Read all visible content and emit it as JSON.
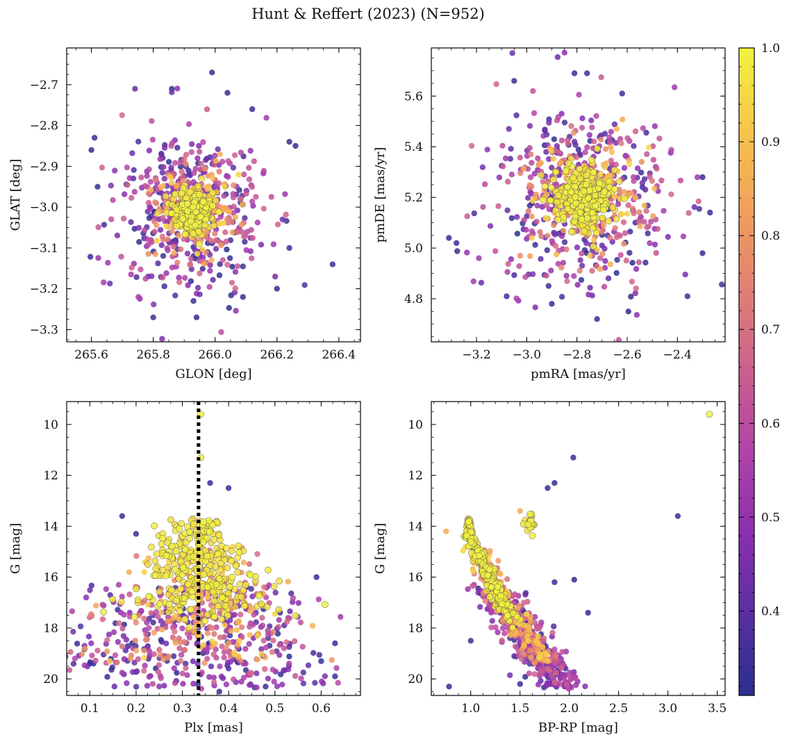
{
  "title": "Hunt & Reffert (2023) (N=952)",
  "colors": {
    "cmap_stops": [
      "#2a2f8f",
      "#5a2fa3",
      "#8b2fb0",
      "#b043a8",
      "#cc5f8e",
      "#e17f74",
      "#f1a05b",
      "#f7c54a",
      "#f2f43f"
    ],
    "marker_edge": "#555555",
    "dashed_line": "#000000"
  },
  "chart_data": [
    {
      "id": "spatial",
      "type": "scatter",
      "xlabel": "GLON [deg]",
      "ylabel": "GLAT [deg]",
      "xlim": [
        265.52,
        266.47
      ],
      "ylim": [
        -3.33,
        -2.61
      ],
      "xticks": [
        265.6,
        265.8,
        266.0,
        266.2,
        266.4
      ],
      "xtick_labels": [
        "265.6",
        "265.8",
        "266.0",
        "266.2",
        "266.4"
      ],
      "yticks": [
        -2.7,
        -2.8,
        -2.9,
        -3.0,
        -3.1,
        -3.2,
        -3.3
      ],
      "ytick_labels": [
        "−2.7",
        "−2.8",
        "−2.9",
        "−3.0",
        "−3.1",
        "−3.2",
        "−3.3"
      ],
      "cluster": {
        "x_center": 265.93,
        "y_center": -3.01
      },
      "outliers": [
        [
          265.99,
          -2.67
        ],
        [
          265.86,
          -2.71
        ],
        [
          266.04,
          -2.72
        ],
        [
          265.6,
          -2.86
        ],
        [
          265.61,
          -2.83
        ],
        [
          266.38,
          -3.14
        ],
        [
          266.2,
          -3.2
        ],
        [
          266.26,
          -2.85
        ],
        [
          266.24,
          -2.84
        ],
        [
          265.8,
          -3.27
        ],
        [
          265.94,
          -3.27
        ],
        [
          265.93,
          -3.23
        ],
        [
          266.09,
          -3.22
        ],
        [
          266.12,
          -2.76
        ],
        [
          266.24,
          -3.1
        ],
        [
          265.62,
          -2.95
        ]
      ]
    },
    {
      "id": "proper_motion",
      "type": "scatter",
      "xlabel": "pmRA [mas/yr]",
      "ylabel": "pmDE [mas/yr]",
      "xlim": [
        -3.38,
        -2.21
      ],
      "ylim": [
        4.63,
        5.79
      ],
      "xticks": [
        -3.2,
        -3.0,
        -2.8,
        -2.6,
        -2.4
      ],
      "xtick_labels": [
        "−3.2",
        "−3.0",
        "−2.8",
        "−2.6",
        "−2.4"
      ],
      "yticks": [
        4.8,
        5.0,
        5.2,
        5.4,
        5.6
      ],
      "ytick_labels": [
        "4.8",
        "5.0",
        "5.2",
        "5.4",
        "5.6"
      ],
      "cluster": {
        "x_center": -2.77,
        "y_center": 5.2
      },
      "outliers": [
        [
          -2.81,
          5.69
        ],
        [
          -2.76,
          5.69
        ],
        [
          -3.05,
          5.66
        ],
        [
          -2.62,
          5.61
        ],
        [
          -3.31,
          5.04
        ],
        [
          -3.28,
          5.02
        ],
        [
          -2.27,
          5.14
        ],
        [
          -2.3,
          5.28
        ],
        [
          -2.36,
          4.81
        ],
        [
          -2.3,
          4.98
        ],
        [
          -2.72,
          4.72
        ],
        [
          -2.9,
          4.78
        ],
        [
          -3.08,
          4.81
        ]
      ]
    },
    {
      "id": "g_vs_parallax",
      "type": "scatter",
      "xlabel": "Plx [mas]",
      "ylabel": "G [mag]",
      "xlim": [
        0.05,
        0.685
      ],
      "ylim": [
        20.65,
        9.1
      ],
      "xticks": [
        0.1,
        0.2,
        0.3,
        0.4,
        0.5,
        0.6
      ],
      "xtick_labels": [
        "0.1",
        "0.2",
        "0.3",
        "0.4",
        "0.5",
        "0.6"
      ],
      "yticks": [
        10,
        12,
        14,
        16,
        18,
        20
      ],
      "ytick_labels": [
        "10",
        "12",
        "14",
        "16",
        "18",
        "20"
      ],
      "reference_line_plx": 0.335,
      "outliers": [
        [
          0.34,
          9.6
        ],
        [
          0.34,
          11.3
        ],
        [
          0.36,
          12.3
        ],
        [
          0.4,
          12.5
        ],
        [
          0.17,
          13.6
        ],
        [
          0.2,
          14.3
        ],
        [
          0.59,
          16.0
        ],
        [
          0.63,
          18.6
        ],
        [
          0.63,
          19.9
        ],
        [
          0.1,
          19.4
        ],
        [
          0.6,
          19.3
        ],
        [
          0.48,
          20.3
        ],
        [
          0.38,
          20.5
        ]
      ]
    },
    {
      "id": "cmd",
      "type": "scatter",
      "xlabel": "BP-RP [mag]",
      "ylabel": "G [mag]",
      "xlim": [
        0.6,
        3.58
      ],
      "ylim": [
        20.65,
        9.1
      ],
      "xticks": [
        1.0,
        1.5,
        2.0,
        2.5,
        3.0,
        3.5
      ],
      "xtick_labels": [
        "1.0",
        "1.5",
        "2.0",
        "2.5",
        "3.0",
        "3.5"
      ],
      "yticks": [
        10,
        12,
        14,
        16,
        18,
        20
      ],
      "ytick_labels": [
        "10",
        "12",
        "14",
        "16",
        "18",
        "20"
      ],
      "red_clump": {
        "bp_rp": 1.6,
        "g": 13.8
      },
      "outliers": [
        [
          3.42,
          9.6
        ],
        [
          2.04,
          11.3
        ],
        [
          1.85,
          12.3
        ],
        [
          1.78,
          12.5
        ],
        [
          3.1,
          13.6
        ],
        [
          1.5,
          13.4
        ],
        [
          0.75,
          14.2
        ],
        [
          1.85,
          16.2
        ],
        [
          2.05,
          16.1
        ],
        [
          2.19,
          17.4
        ],
        [
          0.78,
          20.3
        ],
        [
          1.0,
          18.5
        ],
        [
          1.5,
          20.2
        ],
        [
          1.95,
          20.2
        ]
      ],
      "main_sequence_tracks": [
        [
          0.95,
          14.6
        ],
        [
          1.05,
          15.5
        ],
        [
          1.15,
          16.4
        ],
        [
          1.25,
          17.2
        ],
        [
          1.35,
          17.9
        ],
        [
          1.45,
          18.6
        ],
        [
          1.55,
          19.2
        ],
        [
          1.65,
          19.7
        ],
        [
          1.75,
          20.1
        ]
      ]
    }
  ],
  "colorbar": {
    "min": 0.31,
    "max": 1.0,
    "ticks": [
      0.4,
      0.5,
      0.6,
      0.7,
      0.8,
      0.9,
      1.0
    ],
    "tick_labels": [
      "0.4",
      "0.5",
      "0.6",
      "0.7",
      "0.8",
      "0.9",
      "1.0"
    ]
  }
}
